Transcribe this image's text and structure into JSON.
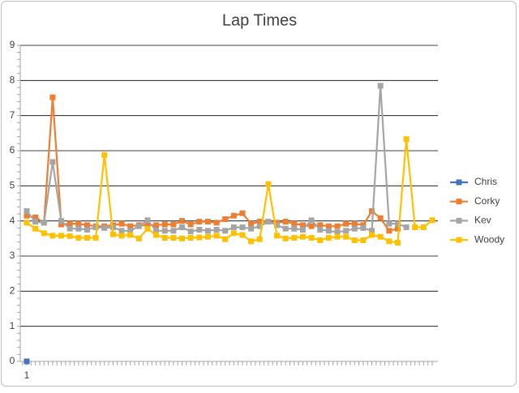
{
  "chart_data": {
    "type": "line",
    "title": "Lap Times",
    "categories": [
      "1",
      null,
      null,
      null,
      null,
      null,
      null,
      null,
      null,
      null,
      null,
      null,
      null,
      null,
      null,
      null,
      null,
      null,
      null,
      null,
      null,
      null,
      null,
      null,
      null,
      null,
      null,
      null,
      null,
      null,
      null,
      null,
      null,
      null,
      null,
      null,
      null,
      null,
      null,
      null,
      null,
      null,
      null,
      null,
      null,
      null,
      null,
      null
    ],
    "series": [
      {
        "name": "Chris",
        "color": "#4472c4",
        "values": [
          0,
          null,
          null,
          null,
          null,
          null,
          null,
          null,
          null,
          null,
          null,
          null,
          null,
          null,
          null,
          null,
          null,
          null,
          null,
          null,
          null,
          null,
          null,
          null,
          null,
          null,
          null,
          null,
          null,
          null,
          null,
          null,
          null,
          null,
          null,
          null,
          null,
          null,
          null,
          null,
          null,
          null,
          null,
          null,
          null,
          null,
          null,
          null
        ]
      },
      {
        "name": "Corky",
        "color": "#ed7d31",
        "values": [
          4.15,
          4.1,
          3.95,
          7.52,
          3.9,
          3.92,
          3.92,
          3.88,
          3.85,
          3.85,
          3.88,
          3.92,
          3.85,
          3.88,
          3.88,
          3.88,
          3.9,
          3.9,
          4.0,
          3.9,
          3.98,
          3.98,
          3.95,
          4.05,
          4.15,
          4.22,
          3.92,
          3.98,
          3.98,
          3.95,
          3.98,
          3.92,
          3.88,
          3.85,
          3.88,
          3.85,
          3.85,
          3.92,
          3.92,
          3.88,
          4.28,
          4.08,
          3.72,
          3.78,
          null,
          null,
          null,
          null
        ]
      },
      {
        "name": "Kev",
        "color": "#a5a5a5",
        "values": [
          4.28,
          3.98,
          3.95,
          5.68,
          4.0,
          3.78,
          3.78,
          3.75,
          3.82,
          3.8,
          3.82,
          3.72,
          3.72,
          3.85,
          4.02,
          3.72,
          3.72,
          3.72,
          3.82,
          3.7,
          3.75,
          3.72,
          3.75,
          3.72,
          3.82,
          3.82,
          3.78,
          3.85,
          3.98,
          3.88,
          3.78,
          3.78,
          3.75,
          4.02,
          3.75,
          3.72,
          3.68,
          3.72,
          3.78,
          3.8,
          3.72,
          7.85,
          3.92,
          3.92,
          3.82,
          null,
          null,
          null
        ]
      },
      {
        "name": "Woody",
        "color": "#ffc000",
        "values": [
          3.95,
          3.78,
          3.65,
          3.58,
          3.58,
          3.57,
          3.52,
          3.52,
          3.52,
          5.88,
          3.62,
          3.58,
          3.6,
          3.5,
          3.78,
          3.6,
          3.52,
          3.52,
          3.5,
          3.52,
          3.53,
          3.55,
          3.58,
          3.48,
          3.65,
          3.6,
          3.42,
          3.48,
          5.05,
          3.58,
          3.5,
          3.52,
          3.55,
          3.52,
          3.45,
          3.52,
          3.55,
          3.55,
          3.45,
          3.45,
          3.6,
          3.55,
          3.42,
          3.38,
          6.33,
          3.82,
          3.82,
          4.02
        ]
      }
    ],
    "ylim": [
      0,
      9
    ],
    "yticks": [
      0,
      1,
      2,
      3,
      4,
      5,
      6,
      7,
      8,
      9
    ],
    "grid": true,
    "legend": "right"
  }
}
